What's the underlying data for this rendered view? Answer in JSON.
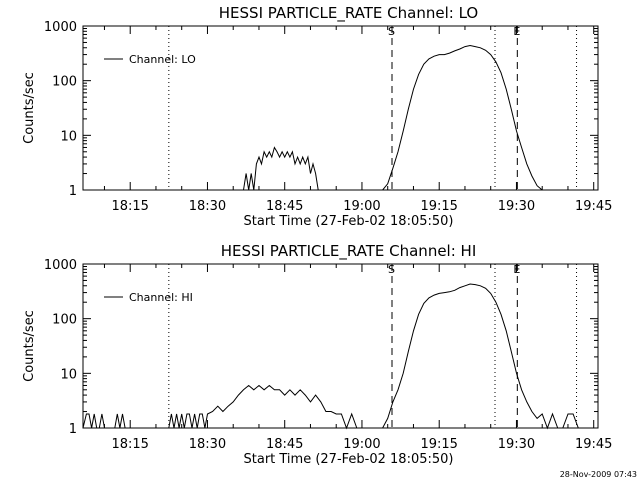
{
  "chart_data": [
    {
      "type": "line",
      "title": "HESSI PARTICLE_RATE Channel: LO",
      "xlabel": "Start Time (27-Feb-02 18:05:50)",
      "ylabel": "Counts/sec",
      "yscale": "log",
      "ylim": [
        1,
        1000
      ],
      "xlim": [
        "18:05:50",
        "19:45:50"
      ],
      "y_tick_labels": [
        "1",
        "10",
        "100",
        "1000"
      ],
      "x_tick_labels": [
        "18:15",
        "18:30",
        "18:45",
        "19:00",
        "19:15",
        "19:30",
        "19:45"
      ],
      "legend_position": "top-left",
      "vertical_lines": [
        {
          "time": "18:22:30",
          "style": "dotted",
          "label": ""
        },
        {
          "time": "19:05:50",
          "style": "dashed",
          "label": "S"
        },
        {
          "time": "19:25:50",
          "style": "dotted",
          "label": ""
        },
        {
          "time": "19:30:10",
          "style": "dashed",
          "label": "E"
        },
        {
          "time": "19:41:40",
          "style": "dotted",
          "label": ""
        }
      ],
      "series": [
        {
          "name": "Channel: LO",
          "x": [
            "18:05:50",
            "18:37:00",
            "18:37:30",
            "18:38:00",
            "18:38:30",
            "18:39:00",
            "18:39:30",
            "18:40:00",
            "18:40:30",
            "18:41:00",
            "18:41:30",
            "18:42:00",
            "18:42:30",
            "18:43:00",
            "18:43:30",
            "18:44:00",
            "18:44:30",
            "18:45:00",
            "18:45:30",
            "18:46:00",
            "18:46:30",
            "18:47:00",
            "18:47:30",
            "18:48:00",
            "18:48:30",
            "18:49:00",
            "18:49:30",
            "18:50:00",
            "18:50:30",
            "18:51:00",
            "18:51:30",
            "18:52:00",
            "19:04:00",
            "19:05:00",
            "19:06:00",
            "19:07:00",
            "19:08:00",
            "19:09:00",
            "19:10:00",
            "19:11:00",
            "19:12:00",
            "19:13:00",
            "19:14:00",
            "19:15:00",
            "19:16:00",
            "19:17:00",
            "19:18:00",
            "19:19:00",
            "19:20:00",
            "19:21:00",
            "19:22:00",
            "19:23:00",
            "19:24:00",
            "19:25:00",
            "19:26:00",
            "19:27:00",
            "19:28:00",
            "19:29:00",
            "19:30:00",
            "19:31:00",
            "19:32:00",
            "19:33:00",
            "19:34:00",
            "19:35:00",
            "19:36:00",
            "19:37:00",
            "19:38:00",
            "19:39:00",
            "19:40:00",
            "19:45:50"
          ],
          "y": [
            1,
            1,
            2,
            1,
            2,
            1,
            3,
            4,
            3,
            5,
            4,
            5,
            4,
            6,
            5,
            4,
            5,
            4,
            5,
            4,
            5,
            3,
            4,
            3,
            4,
            3,
            4,
            2,
            3,
            2,
            1,
            1,
            1,
            1.3,
            2.5,
            5,
            12,
            30,
            70,
            130,
            200,
            250,
            280,
            300,
            300,
            320,
            350,
            380,
            420,
            440,
            420,
            400,
            360,
            300,
            220,
            140,
            70,
            30,
            12,
            6,
            3,
            1.8,
            1.2,
            1,
            1,
            1,
            1,
            1,
            1,
            1
          ]
        }
      ]
    },
    {
      "type": "line",
      "title": "HESSI PARTICLE_RATE Channel: HI",
      "xlabel": "Start Time (27-Feb-02 18:05:50)",
      "ylabel": "Counts/sec",
      "yscale": "log",
      "ylim": [
        1,
        1000
      ],
      "xlim": [
        "18:05:50",
        "19:45:50"
      ],
      "y_tick_labels": [
        "1",
        "10",
        "100",
        "1000"
      ],
      "x_tick_labels": [
        "18:15",
        "18:30",
        "18:45",
        "19:00",
        "19:15",
        "19:30",
        "19:45"
      ],
      "legend_position": "top-left",
      "vertical_lines": [
        {
          "time": "18:22:30",
          "style": "dotted",
          "label": ""
        },
        {
          "time": "19:05:50",
          "style": "dashed",
          "label": "S"
        },
        {
          "time": "19:25:50",
          "style": "dotted",
          "label": ""
        },
        {
          "time": "19:30:10",
          "style": "dashed",
          "label": "E"
        },
        {
          "time": "19:41:40",
          "style": "dotted",
          "label": ""
        }
      ],
      "series": [
        {
          "name": "Channel: HI",
          "x": [
            "18:05:50",
            "18:06:30",
            "18:07:00",
            "18:07:30",
            "18:08:00",
            "18:08:30",
            "18:09:00",
            "18:09:30",
            "18:10:00",
            "18:12:00",
            "18:12:30",
            "18:13:00",
            "18:13:30",
            "18:14:00",
            "18:20:00",
            "18:22:30",
            "18:23:00",
            "18:23:30",
            "18:24:00",
            "18:24:30",
            "18:25:00",
            "18:25:30",
            "18:26:00",
            "18:26:30",
            "18:27:00",
            "18:27:30",
            "18:28:00",
            "18:28:30",
            "18:29:00",
            "18:29:30",
            "18:30:00",
            "18:31:00",
            "18:32:00",
            "18:33:00",
            "18:34:00",
            "18:35:00",
            "18:36:00",
            "18:37:00",
            "18:38:00",
            "18:39:00",
            "18:40:00",
            "18:41:00",
            "18:42:00",
            "18:43:00",
            "18:44:00",
            "18:45:00",
            "18:46:00",
            "18:47:00",
            "18:48:00",
            "18:49:00",
            "18:50:00",
            "18:51:00",
            "18:52:00",
            "18:53:00",
            "18:54:00",
            "18:55:00",
            "18:56:00",
            "18:57:00",
            "18:58:00",
            "18:59:00",
            "19:00:00",
            "19:01:00",
            "19:02:00",
            "19:03:00",
            "19:04:00",
            "19:05:00",
            "19:06:00",
            "19:07:00",
            "19:08:00",
            "19:09:00",
            "19:10:00",
            "19:11:00",
            "19:12:00",
            "19:13:00",
            "19:14:00",
            "19:15:00",
            "19:16:00",
            "19:17:00",
            "19:18:00",
            "19:19:00",
            "19:20:00",
            "19:21:00",
            "19:22:00",
            "19:23:00",
            "19:24:00",
            "19:25:00",
            "19:26:00",
            "19:27:00",
            "19:28:00",
            "19:29:00",
            "19:30:00",
            "19:31:00",
            "19:32:00",
            "19:33:00",
            "19:34:00",
            "19:35:00",
            "19:36:00",
            "19:37:00",
            "19:38:00",
            "19:39:00",
            "19:40:00",
            "19:41:00",
            "19:42:00",
            "19:43:00",
            "19:45:50"
          ],
          "y": [
            1,
            1.8,
            1.8,
            1,
            1.8,
            1,
            1,
            1.8,
            1,
            1,
            1.8,
            1,
            1.8,
            1,
            1,
            1,
            1.8,
            1,
            1.8,
            1,
            1.8,
            1,
            1.8,
            1.8,
            1,
            1.8,
            1,
            1.8,
            1.8,
            1,
            1.8,
            2,
            2.5,
            2,
            2.5,
            3,
            4,
            5,
            6,
            5,
            6,
            5,
            6,
            5,
            5,
            4,
            5,
            4,
            5,
            4,
            3,
            4,
            3,
            2,
            2,
            1.8,
            1.8,
            1,
            1.8,
            1,
            1,
            1,
            1,
            1,
            1,
            1.5,
            3,
            5,
            10,
            25,
            60,
            120,
            190,
            240,
            270,
            290,
            300,
            310,
            330,
            370,
            400,
            430,
            420,
            400,
            360,
            290,
            200,
            120,
            60,
            25,
            10,
            5,
            3,
            2,
            1.5,
            1.8,
            1,
            1.8,
            1,
            1,
            1.8,
            1.8,
            1,
            1,
            1
          ]
        }
      ]
    }
  ],
  "footer": {
    "timestamp": "28-Nov-2009 07:43"
  }
}
